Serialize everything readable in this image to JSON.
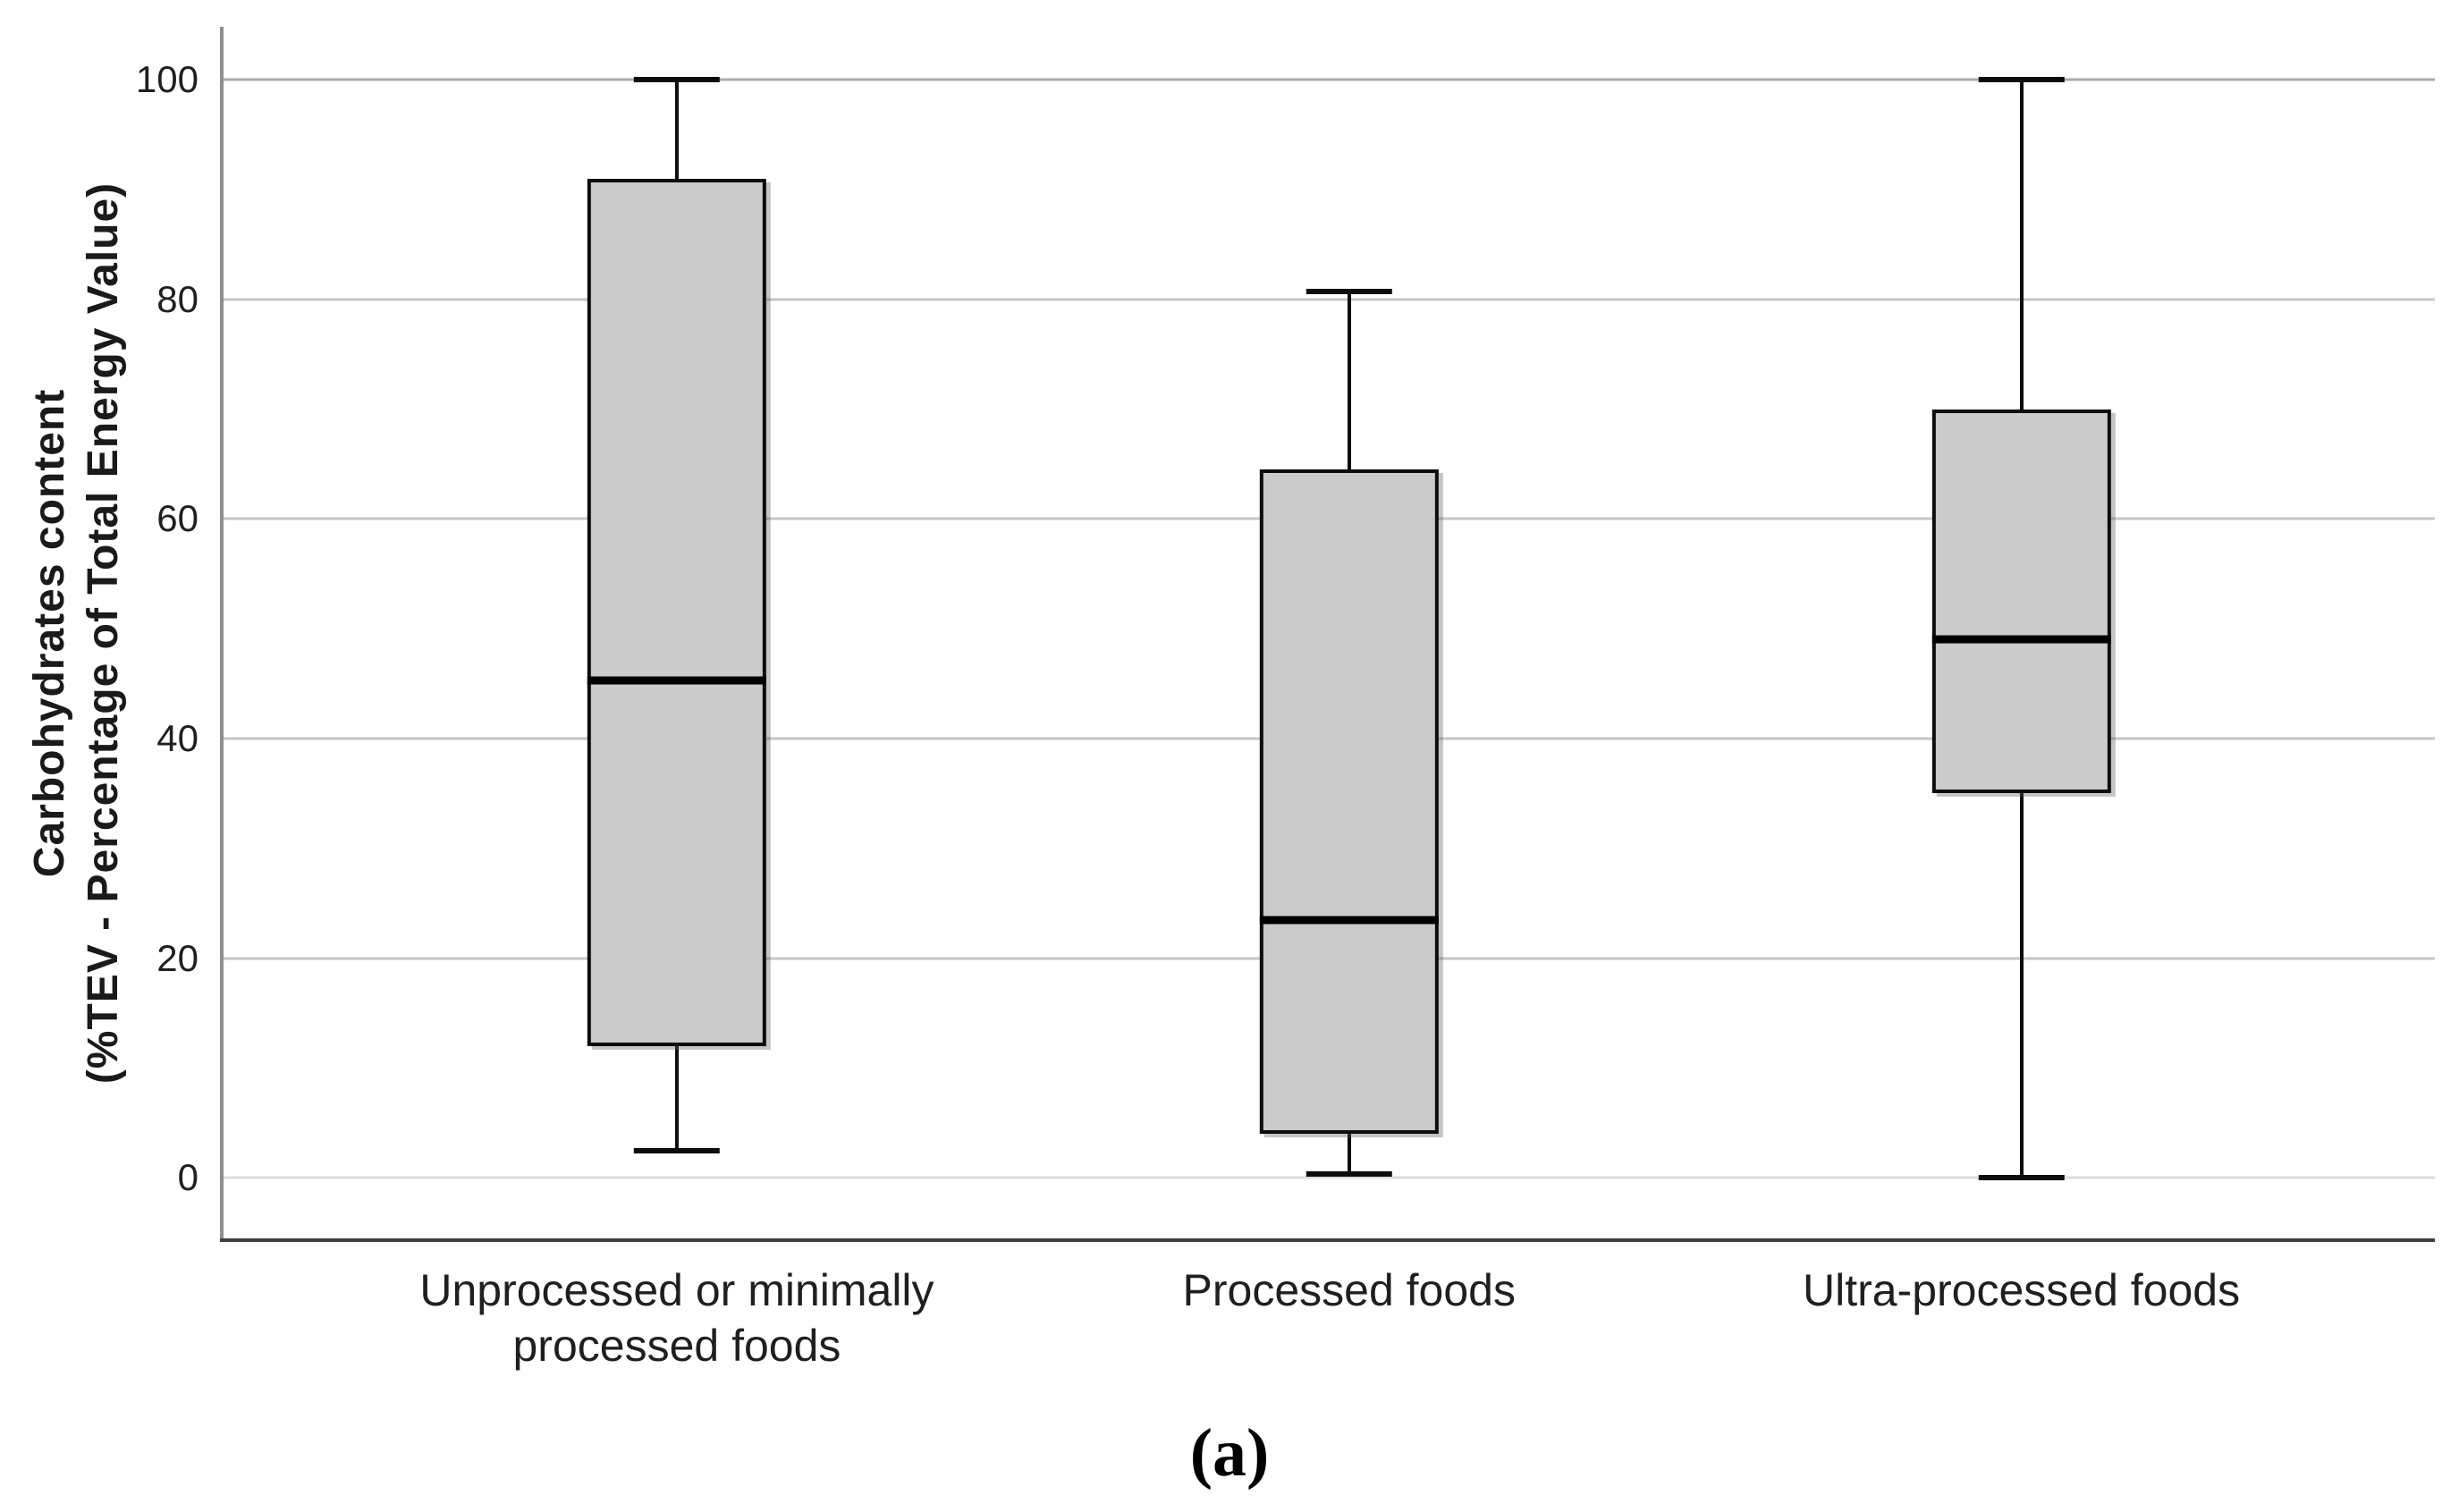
{
  "figure": {
    "caption": "(a)",
    "background": "#ffffff"
  },
  "chart_data": {
    "type": "boxplot",
    "title": "",
    "ylabel_line1": "Carbohydrates content",
    "ylabel_line2": "(%TEV - Percentage of Total Energy Value)",
    "xlabel": "",
    "ylim": [
      0,
      100
    ],
    "yticks": [
      0,
      20,
      40,
      60,
      80,
      100
    ],
    "grid": "horizontal gridlines on",
    "legend": "none",
    "categories": [
      "Unprocessed or minimally processed foods",
      "Processed foods",
      "Ultra-processed foods"
    ],
    "series": [
      {
        "category": "Unprocessed or minimally processed foods",
        "whisker_low": 2.5,
        "q1": 12,
        "median": 45.3,
        "q3": 91,
        "whisker_high": 100
      },
      {
        "category": "Processed foods",
        "whisker_low": 0.4,
        "q1": 4,
        "median": 23.5,
        "q3": 64.5,
        "whisker_high": 80.7
      },
      {
        "category": "Ultra-processed foods",
        "whisker_low": 0,
        "q1": 35,
        "median": 49,
        "q3": 70,
        "whisker_high": 100
      }
    ],
    "colors": {
      "box_fill": "#cbcbcb",
      "box_border": "#0d0d0d",
      "median": "#000000",
      "whisker": "#0d0d0d",
      "gridline": "#c6c6c6",
      "gridline_zero": "#dedede",
      "gridline_hundred": "#aaaaaa",
      "y_axis_line": "#8f8f8f",
      "x_axis_line": "#3f3f3f",
      "text": "#1f1f1f"
    }
  }
}
